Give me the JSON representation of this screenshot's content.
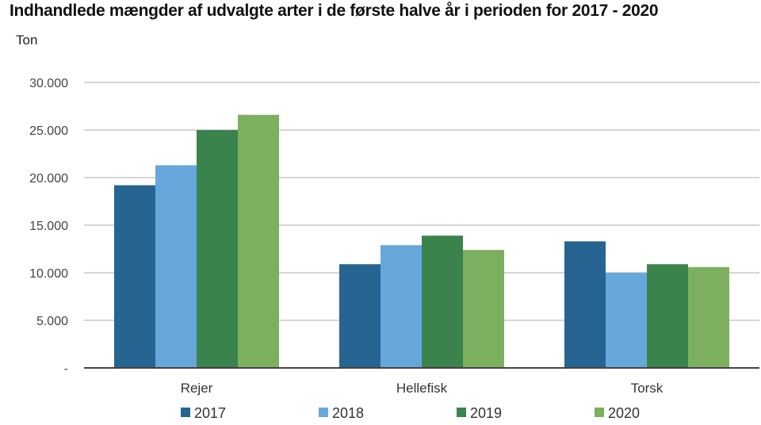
{
  "chart_data": {
    "type": "bar",
    "title": "Indhandlede mængder af udvalgte arter i de første halve år i perioden for 2017 - 2020",
    "ylabel": "Ton",
    "xlabel": "",
    "categories": [
      "Rejer",
      "Hellefisk",
      "Torsk"
    ],
    "ylim": [
      0,
      30000
    ],
    "yticks": [
      0,
      5000,
      10000,
      15000,
      20000,
      25000,
      30000
    ],
    "ytick_labels": [
      "-",
      "5.000",
      "10.000",
      "15.000",
      "20.000",
      "25.000",
      "30.000"
    ],
    "grid": true,
    "legend_position": "bottom",
    "series": [
      {
        "name": "2017",
        "color": "#266591",
        "values": [
          19200,
          10900,
          13300
        ]
      },
      {
        "name": "2018",
        "color": "#66a8dc",
        "values": [
          21300,
          12900,
          10000
        ]
      },
      {
        "name": "2019",
        "color": "#3b834d",
        "values": [
          25000,
          13900,
          10900
        ]
      },
      {
        "name": "2020",
        "color": "#7cb05e",
        "values": [
          26600,
          12400,
          10600
        ]
      }
    ]
  }
}
